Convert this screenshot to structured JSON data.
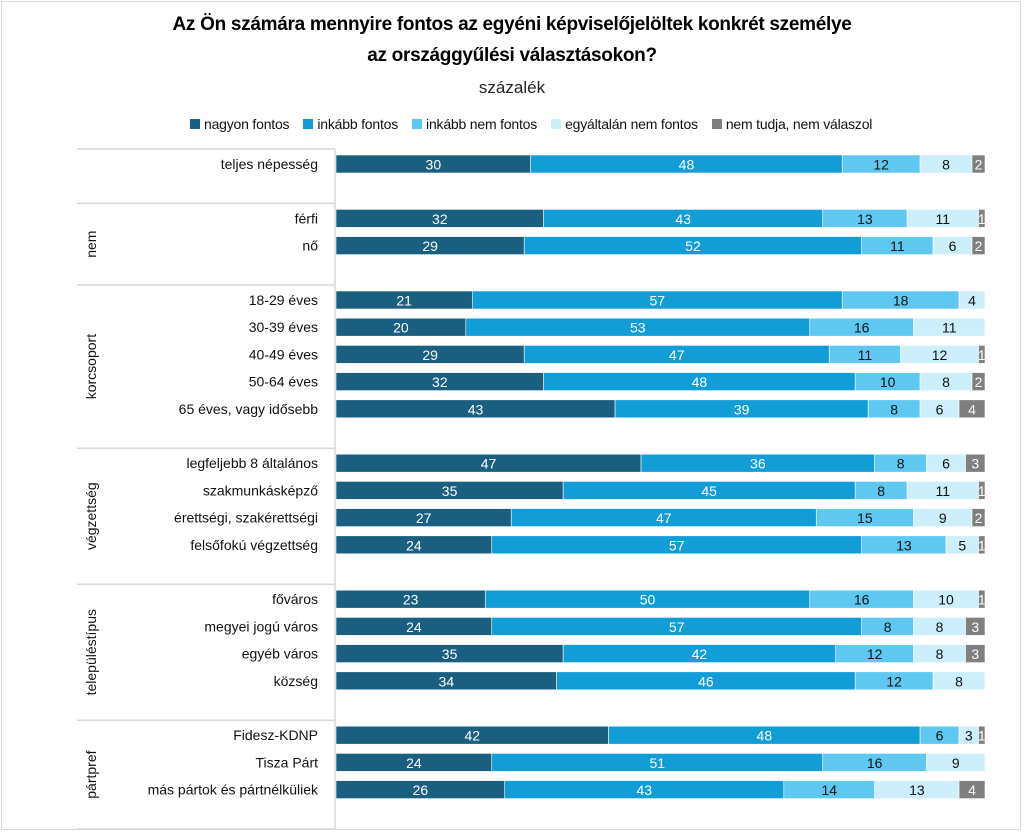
{
  "chart_data": {
    "type": "bar",
    "orientation": "horizontal",
    "stacked": true,
    "title": "Az Ön számára mennyire fontos az egyéni képviselőjelöltek konkrét személye az országgyűlési választásokon?",
    "title_lines": [
      "Az Ön számára mennyire fontos az egyéni képviselőjelöltek konkrét személye",
      "az országgyűlési választásokon?"
    ],
    "subtitle": "százalék",
    "xlabel": "",
    "ylabel": "",
    "xlim": [
      0,
      100
    ],
    "grid": false,
    "legend_position": "top",
    "series": [
      {
        "name": "nagyon fontos",
        "color": "#1a5f80",
        "label_color": "#ffffff"
      },
      {
        "name": "inkább fontos",
        "color": "#129dd6",
        "label_color": "#ffffff"
      },
      {
        "name": "inkább nem fontos",
        "color": "#5ec8f0",
        "label_color": "#111111"
      },
      {
        "name": "egyáltalán nem fontos",
        "color": "#cdeefb",
        "label_color": "#111111"
      },
      {
        "name": "nem tudja, nem válaszol",
        "color": "#7f7f7f",
        "label_color": "#ffffff"
      }
    ],
    "groups": [
      {
        "name": "",
        "rows": [
          {
            "label": "teljes népesség",
            "values": [
              30,
              48,
              12,
              8,
              2
            ]
          }
        ]
      },
      {
        "name": "nem",
        "rows": [
          {
            "label": "férfi",
            "values": [
              32,
              43,
              13,
              11,
              1
            ]
          },
          {
            "label": "nő",
            "values": [
              29,
              52,
              11,
              6,
              2
            ]
          }
        ]
      },
      {
        "name": "korcsoport",
        "rows": [
          {
            "label": "18-29 éves",
            "values": [
              21,
              57,
              18,
              4,
              0
            ]
          },
          {
            "label": "30-39 éves",
            "values": [
              20,
              53,
              16,
              11,
              0
            ]
          },
          {
            "label": "40-49 éves",
            "values": [
              29,
              47,
              11,
              12,
              1
            ]
          },
          {
            "label": "50-64 éves",
            "values": [
              32,
              48,
              10,
              8,
              2
            ]
          },
          {
            "label": "65 éves, vagy idősebb",
            "values": [
              43,
              39,
              8,
              6,
              4
            ]
          }
        ]
      },
      {
        "name": "végzettség",
        "rows": [
          {
            "label": "legfeljebb 8 általános",
            "values": [
              47,
              36,
              8,
              6,
              3
            ]
          },
          {
            "label": "szakmunkásképző",
            "values": [
              35,
              45,
              8,
              11,
              1
            ]
          },
          {
            "label": "érettségi, szakérettségi",
            "values": [
              27,
              47,
              15,
              9,
              2
            ]
          },
          {
            "label": "felsőfokú végzettség",
            "values": [
              24,
              57,
              13,
              5,
              1
            ]
          }
        ]
      },
      {
        "name": "településtípus",
        "rows": [
          {
            "label": "főváros",
            "values": [
              23,
              50,
              16,
              10,
              1
            ]
          },
          {
            "label": "megyei jogú város",
            "values": [
              24,
              57,
              8,
              8,
              3
            ]
          },
          {
            "label": "egyéb város",
            "values": [
              35,
              42,
              12,
              8,
              3
            ]
          },
          {
            "label": "község",
            "values": [
              34,
              46,
              12,
              8,
              0
            ]
          }
        ]
      },
      {
        "name": "pártpref",
        "rows": [
          {
            "label": "Fidesz-KDNP",
            "values": [
              42,
              48,
              6,
              3,
              1
            ]
          },
          {
            "label": "Tisza Párt",
            "values": [
              24,
              51,
              16,
              9,
              0
            ]
          },
          {
            "label": "más pártok és pártnélküliek",
            "values": [
              26,
              43,
              14,
              13,
              4
            ]
          }
        ]
      }
    ]
  }
}
